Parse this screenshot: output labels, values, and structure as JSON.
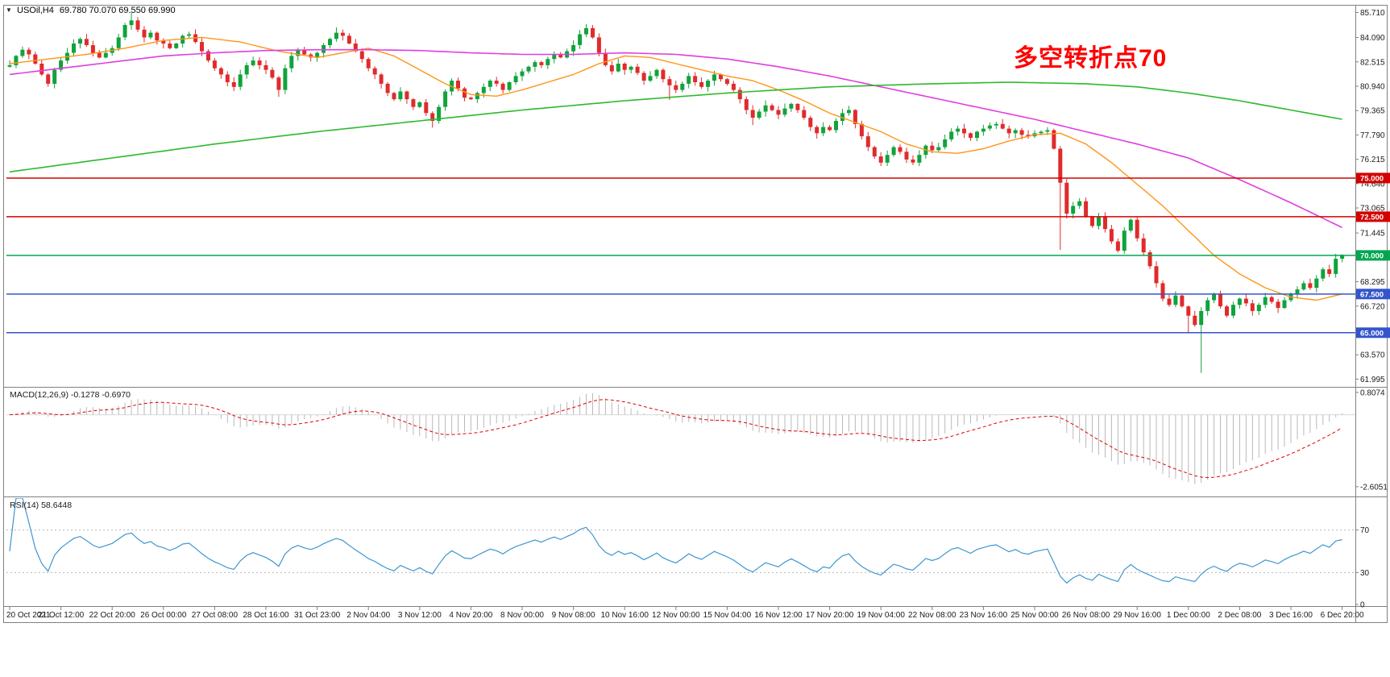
{
  "window": {
    "collapse_icon": "▼"
  },
  "header": {
    "symbol": "USOil,H4",
    "ohlc": "69.780 70.070 69.550 69.990"
  },
  "annotation": {
    "text": "多空转折点70",
    "color": "#ff0000"
  },
  "panels": {
    "macd": {
      "label": "MACD(12,26,9) -0.1278 -0.6970",
      "axis_labels": [
        "0.8074",
        "-2.6051"
      ]
    },
    "rsi": {
      "label": "RSI(14) 58.6448",
      "axis_labels": [
        "70",
        "30",
        "0"
      ],
      "levels": [
        70,
        30
      ]
    }
  },
  "chart_data": {
    "type": "candlestick",
    "symbol": "USOil",
    "timeframe": "H4",
    "current_ohlc": {
      "open": 69.78,
      "high": 70.07,
      "low": 69.55,
      "close": 69.99
    },
    "price_range": {
      "max": 86.1,
      "min": 61.6
    },
    "y_axis_ticks": [
      "85.710",
      "84.090",
      "82.515",
      "80.940",
      "79.365",
      "77.790",
      "76.215",
      "74.640",
      "73.065",
      "71.445",
      "68.295",
      "66.720",
      "63.570",
      "61.995"
    ],
    "x_axis_labels": [
      "20 Oct 2021",
      "21 Oct 12:00",
      "22 Oct 20:00",
      "26 Oct 00:00",
      "27 Oct 08:00",
      "28 Oct 16:00",
      "31 Oct 23:00",
      "2 Nov 04:00",
      "3 Nov 12:00",
      "4 Nov 20:00",
      "8 Nov 00:00",
      "9 Nov 08:00",
      "10 Nov 16:00",
      "12 Nov 00:00",
      "15 Nov 04:00",
      "16 Nov 12:00",
      "17 Nov 20:00",
      "19 Nov 04:00",
      "22 Nov 08:00",
      "23 Nov 16:00",
      "25 Nov 00:00",
      "26 Nov 08:00",
      "29 Nov 16:00",
      "1 Dec 00:00",
      "2 Dec 08:00",
      "3 Dec 16:00",
      "6 Dec 20:00"
    ],
    "horizontal_levels": [
      {
        "price": 75.0,
        "label": "75.000",
        "color": "#d40000"
      },
      {
        "price": 72.5,
        "label": "72.500",
        "color": "#d40000"
      },
      {
        "price": 70.0,
        "label": "70.000",
        "color": "#00a650"
      },
      {
        "price": 67.5,
        "label": "67.500",
        "color": "#3355cc"
      },
      {
        "price": 65.0,
        "label": "65.000",
        "color": "#3355cc"
      }
    ],
    "candles": {
      "first_open": 82.2,
      "closes": [
        82.3,
        82.9,
        83.3,
        83.0,
        82.4,
        81.7,
        81.1,
        82.0,
        82.6,
        83.1,
        83.7,
        84.0,
        83.6,
        83.1,
        82.8,
        83.1,
        83.4,
        84.1,
        84.9,
        85.2,
        84.6,
        84.1,
        84.4,
        83.9,
        83.7,
        83.4,
        83.7,
        84.2,
        84.3,
        83.8,
        83.2,
        82.6,
        82.1,
        81.7,
        81.2,
        80.9,
        81.7,
        82.3,
        82.6,
        82.3,
        82.0,
        81.5,
        80.7,
        82.1,
        82.9,
        83.3,
        83.0,
        82.8,
        83.1,
        83.6,
        84.0,
        84.4,
        84.2,
        83.7,
        83.2,
        82.7,
        82.1,
        81.7,
        81.1,
        80.5,
        80.1,
        80.6,
        80.1,
        79.6,
        79.9,
        79.2,
        78.7,
        79.6,
        80.6,
        81.3,
        80.8,
        80.2,
        80.1,
        80.5,
        80.9,
        81.3,
        81.1,
        80.7,
        81.2,
        81.6,
        81.9,
        82.2,
        82.5,
        82.3,
        82.7,
        83.0,
        82.8,
        83.2,
        83.6,
        84.3,
        84.7,
        84.1,
        83.1,
        82.3,
        81.9,
        82.4,
        82.0,
        82.2,
        81.8,
        81.3,
        81.6,
        82.0,
        81.4,
        81.0,
        80.7,
        81.1,
        81.6,
        81.2,
        80.9,
        81.3,
        81.7,
        81.4,
        81.1,
        80.7,
        80.1,
        79.4,
        78.9,
        79.3,
        79.7,
        79.4,
        79.1,
        79.5,
        79.8,
        79.4,
        78.9,
        78.3,
        77.9,
        78.3,
        78.1,
        78.7,
        79.2,
        79.4,
        78.5,
        77.7,
        77.0,
        76.4,
        76.0,
        76.5,
        77.0,
        76.7,
        76.2,
        76.0,
        76.5,
        77.1,
        76.8,
        77.0,
        77.5,
        78.0,
        78.2,
        77.9,
        77.6,
        78.0,
        78.2,
        78.4,
        78.5,
        78.2,
        77.9,
        78.1,
        77.8,
        77.7,
        77.9,
        78.0,
        78.1,
        76.9,
        74.7,
        72.7,
        73.2,
        73.5,
        72.5,
        71.9,
        72.5,
        71.7,
        70.9,
        70.3,
        71.6,
        72.3,
        71.1,
        70.2,
        69.3,
        68.2,
        67.2,
        66.8,
        67.4,
        66.7,
        66.1,
        65.5,
        66.4,
        67.1,
        67.5,
        66.7,
        66.1,
        66.8,
        67.2,
        66.9,
        66.4,
        66.8,
        67.3,
        67.0,
        66.6,
        67.1,
        67.5,
        67.8,
        68.2,
        67.9,
        68.5,
        69.1,
        68.8,
        69.78,
        69.99
      ],
      "overrides": {
        "19": {
          "h": 85.71
        },
        "35": {
          "l": 80.62
        },
        "42": {
          "l": 80.25
        },
        "51": {
          "h": 84.75
        },
        "66": {
          "l": 78.26
        },
        "90": {
          "h": 84.97
        },
        "103": {
          "l": 80.05
        },
        "116": {
          "l": 78.42
        },
        "126": {
          "l": 77.55
        },
        "136": {
          "l": 75.78
        },
        "154": {
          "h": 78.64
        },
        "164": {
          "l": 70.35
        },
        "184": {
          "l": 64.95
        },
        "186": {
          "l": 62.4
        },
        "208": {
          "h": 70.07,
          "l": 69.55
        }
      },
      "up_color": "#10a33c",
      "down_color": "#e02b2b"
    },
    "moving_averages": [
      {
        "name": "fast-ma",
        "color": "#ff9518",
        "width": 1.4,
        "points": [
          [
            0,
            82.4
          ],
          [
            6,
            82.7
          ],
          [
            12,
            83.0
          ],
          [
            18,
            83.4
          ],
          [
            24,
            83.9
          ],
          [
            30,
            84.1
          ],
          [
            36,
            83.8
          ],
          [
            42,
            83.2
          ],
          [
            48,
            82.8
          ],
          [
            52,
            83.1
          ],
          [
            56,
            83.4
          ],
          [
            60,
            82.9
          ],
          [
            64,
            82.0
          ],
          [
            68,
            81.1
          ],
          [
            72,
            80.4
          ],
          [
            76,
            80.3
          ],
          [
            80,
            80.7
          ],
          [
            84,
            81.2
          ],
          [
            88,
            81.7
          ],
          [
            92,
            82.4
          ],
          [
            96,
            82.9
          ],
          [
            100,
            82.8
          ],
          [
            104,
            82.4
          ],
          [
            108,
            82.0
          ],
          [
            112,
            81.6
          ],
          [
            116,
            81.3
          ],
          [
            120,
            80.7
          ],
          [
            124,
            80.0
          ],
          [
            128,
            79.2
          ],
          [
            132,
            78.6
          ],
          [
            136,
            78.0
          ],
          [
            140,
            77.2
          ],
          [
            144,
            76.7
          ],
          [
            148,
            76.6
          ],
          [
            152,
            76.9
          ],
          [
            156,
            77.4
          ],
          [
            160,
            77.8
          ],
          [
            164,
            77.9
          ],
          [
            168,
            77.2
          ],
          [
            172,
            76.0
          ],
          [
            176,
            74.6
          ],
          [
            180,
            73.2
          ],
          [
            184,
            71.6
          ],
          [
            188,
            70.0
          ],
          [
            192,
            68.8
          ],
          [
            196,
            67.9
          ],
          [
            200,
            67.3
          ],
          [
            204,
            67.1
          ],
          [
            208,
            67.5
          ]
        ]
      },
      {
        "name": "mid-ma",
        "color": "#e03ee0",
        "width": 1.6,
        "points": [
          [
            0,
            81.7
          ],
          [
            8,
            82.1
          ],
          [
            16,
            82.5
          ],
          [
            24,
            82.9
          ],
          [
            32,
            83.1
          ],
          [
            40,
            83.25
          ],
          [
            48,
            83.3
          ],
          [
            56,
            83.3
          ],
          [
            64,
            83.25
          ],
          [
            72,
            83.1
          ],
          [
            80,
            83.0
          ],
          [
            88,
            83.0
          ],
          [
            96,
            83.1
          ],
          [
            104,
            83.0
          ],
          [
            112,
            82.7
          ],
          [
            120,
            82.2
          ],
          [
            128,
            81.6
          ],
          [
            136,
            80.9
          ],
          [
            144,
            80.2
          ],
          [
            152,
            79.5
          ],
          [
            160,
            78.8
          ],
          [
            168,
            78.0
          ],
          [
            176,
            77.2
          ],
          [
            184,
            76.3
          ],
          [
            192,
            74.9
          ],
          [
            200,
            73.4
          ],
          [
            208,
            71.8
          ]
        ]
      },
      {
        "name": "slow-ma",
        "color": "#2db92d",
        "width": 1.6,
        "points": [
          [
            0,
            75.4
          ],
          [
            16,
            76.3
          ],
          [
            32,
            77.2
          ],
          [
            48,
            78.0
          ],
          [
            64,
            78.7
          ],
          [
            80,
            79.4
          ],
          [
            96,
            80.0
          ],
          [
            112,
            80.5
          ],
          [
            128,
            80.9
          ],
          [
            144,
            81.1
          ],
          [
            156,
            81.2
          ],
          [
            168,
            81.1
          ],
          [
            176,
            80.9
          ],
          [
            184,
            80.5
          ],
          [
            192,
            80.0
          ],
          [
            200,
            79.4
          ],
          [
            208,
            78.8
          ]
        ]
      }
    ],
    "macd": {
      "fast": 12,
      "slow": 26,
      "signal": 9,
      "value": -0.1278,
      "signal_value": -0.697,
      "range": {
        "max": 0.95,
        "min": -2.9
      },
      "histogram_color": "#b9b9b9",
      "signal_color": "#e00000"
    },
    "rsi": {
      "period": 14,
      "value": 58.6448,
      "color": "#3d96d2",
      "range": {
        "max": 100,
        "min": 0
      }
    }
  }
}
